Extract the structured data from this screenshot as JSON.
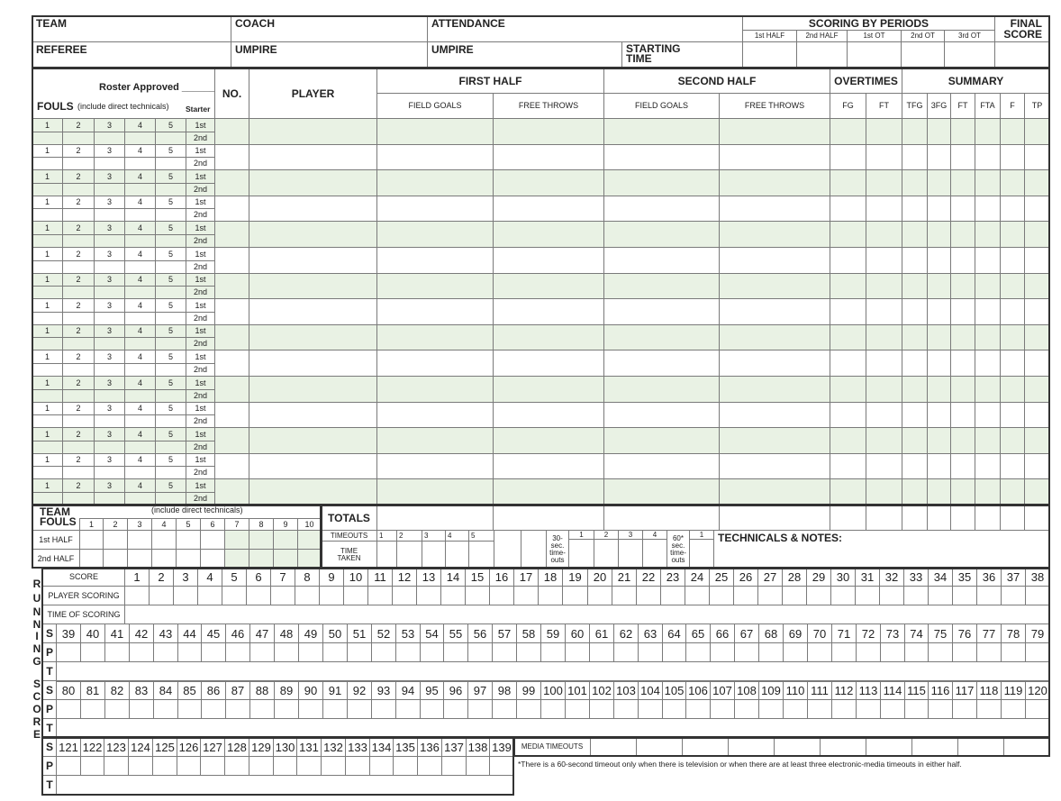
{
  "header": {
    "team": "TEAM",
    "coach": "COACH",
    "attendance": "ATTENDANCE",
    "referee": "REFEREE",
    "umpire_1": "UMPIRE",
    "umpire_2": "UMPIRE",
    "starting_time": "STARTING TIME",
    "scoring_by_periods": "SCORING BY PERIODS",
    "periods": [
      "1st HALF",
      "2nd HALF",
      "1st OT",
      "2nd OT",
      "3rd OT"
    ],
    "final_score": "FINAL SCORE"
  },
  "roster": {
    "roster_approved": "Roster Approved ______",
    "fouls": "FOULS",
    "fouls_note": "(include direct technicals)",
    "starter": "Starter",
    "no": "NO.",
    "player": "PLAYER",
    "first_half": "FIRST HALF",
    "second_half": "SECOND HALF",
    "field_goals": "FIELD GOALS",
    "free_throws": "FREE THROWS",
    "overtimes": "OVERTIMES",
    "ot_cols": [
      "FG",
      "FT"
    ],
    "summary": "SUMMARY",
    "summary_cols": [
      "TFG",
      "3FG",
      "FT",
      "FTA",
      "F",
      "TP"
    ],
    "foul_numbers": [
      "1",
      "2",
      "3",
      "4",
      "5"
    ],
    "starter_halves": [
      "1st",
      "2nd"
    ]
  },
  "team_fouls": {
    "title": "TEAM FOULS",
    "note": "(include direct technicals)",
    "numbers": [
      "1",
      "2",
      "3",
      "4",
      "5",
      "6",
      "7",
      "8",
      "9",
      "10"
    ],
    "halves": [
      "1st HALF",
      "2nd HALF"
    ]
  },
  "totals": "TOTALS",
  "timeouts": {
    "label": "TIMEOUTS",
    "numbers": [
      "1",
      "2",
      "3",
      "4",
      "5"
    ],
    "time_taken": "TIME TAKEN",
    "thirty_label": "30- sec. time- outs",
    "thirty_numbers": [
      "1",
      "2",
      "3",
      "4"
    ],
    "sixty_label": "60* sec. time- outs",
    "sixty_numbers": [
      "1"
    ]
  },
  "technicals_notes": "TECHNICALS & NOTES:",
  "running_score": {
    "side_label": [
      "R",
      "U",
      "N",
      "N",
      "I",
      "N",
      "G",
      "S",
      "C",
      "O",
      "R",
      "E"
    ],
    "score": "SCORE",
    "player_scoring": "PLAYER SCORING",
    "time_of_scoring": "TIME OF SCORING",
    "row_letters": [
      "S",
      "P",
      "T"
    ],
    "blocks": [
      [
        1,
        2,
        3,
        4,
        5,
        6,
        7,
        8,
        9,
        10,
        11,
        12,
        13,
        14,
        15,
        16,
        17,
        18,
        19,
        20,
        21,
        22,
        23,
        24,
        25,
        26,
        27,
        28,
        29,
        30,
        31,
        32,
        33,
        34,
        35,
        36,
        37,
        38
      ],
      [
        39,
        40,
        41,
        42,
        43,
        44,
        45,
        46,
        47,
        48,
        49,
        50,
        51,
        52,
        53,
        54,
        55,
        56,
        57,
        58,
        59,
        60,
        61,
        62,
        63,
        64,
        65,
        66,
        67,
        68,
        69,
        70,
        71,
        72,
        73,
        74,
        75,
        76,
        77,
        78,
        79
      ],
      [
        80,
        81,
        82,
        83,
        84,
        85,
        86,
        87,
        88,
        89,
        90,
        91,
        92,
        93,
        94,
        95,
        96,
        97,
        98,
        99,
        100,
        101,
        102,
        103,
        104,
        105,
        106,
        107,
        108,
        109,
        110,
        111,
        112,
        113,
        114,
        115,
        116,
        117,
        118,
        119,
        120
      ],
      [
        121,
        122,
        123,
        124,
        125,
        126,
        127,
        128,
        129,
        130,
        131,
        132,
        133,
        134,
        135,
        136,
        137,
        138,
        139
      ]
    ]
  },
  "media_timeouts": "MEDIA TIMEOUTS",
  "footnote": "*There is a 60-second timeout only when there is television or when there are at least three electronic-media timeouts in either half.",
  "colors": {
    "shade": "#e9f2e4",
    "line": "#7a7a7a"
  }
}
